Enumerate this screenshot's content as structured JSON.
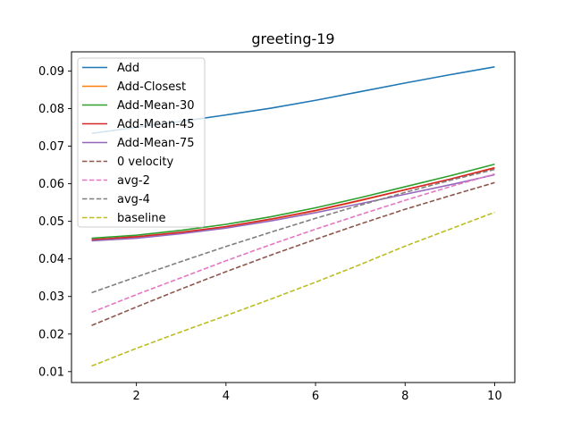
{
  "chart_data": {
    "type": "line",
    "title": "greeting-19",
    "xlabel": "",
    "ylabel": "",
    "xlim": [
      0.55,
      10.45
    ],
    "ylim": [
      0.0071,
      0.0951
    ],
    "xticks": [
      2,
      4,
      6,
      8,
      10
    ],
    "yticks": [
      0.01,
      0.02,
      0.03,
      0.04,
      0.05,
      0.06,
      0.07,
      0.08,
      0.09
    ],
    "ytick_labels": [
      "0.01",
      "0.02",
      "0.03",
      "0.04",
      "0.05",
      "0.06",
      "0.07",
      "0.08",
      "0.09"
    ],
    "grid": false,
    "legend_position": "upper-left",
    "x": [
      1,
      2,
      3,
      4,
      5,
      6,
      7,
      8,
      9,
      10
    ],
    "series": [
      {
        "name": "Add",
        "color": "#1f77b4",
        "dash": "solid",
        "values": [
          0.0734,
          0.075,
          0.0766,
          0.0783,
          0.0801,
          0.0822,
          0.0845,
          0.0868,
          0.089,
          0.0911
        ]
      },
      {
        "name": "Add-Closest",
        "color": "#ff7f0e",
        "dash": "solid",
        "values": [
          0.045,
          0.0458,
          0.047,
          0.0485,
          0.0505,
          0.0528,
          0.0555,
          0.0584,
          0.0612,
          0.0643
        ]
      },
      {
        "name": "Add-Mean-30",
        "color": "#2ca02c",
        "dash": "solid",
        "values": [
          0.0455,
          0.0463,
          0.0476,
          0.0492,
          0.0512,
          0.0536,
          0.0563,
          0.0592,
          0.0621,
          0.0652
        ]
      },
      {
        "name": "Add-Mean-45",
        "color": "#d62728",
        "dash": "solid",
        "values": [
          0.0451,
          0.0459,
          0.0471,
          0.0486,
          0.0506,
          0.0529,
          0.0556,
          0.0584,
          0.0612,
          0.0642
        ]
      },
      {
        "name": "Add-Mean-75",
        "color": "#9467bd",
        "dash": "solid",
        "values": [
          0.0448,
          0.0455,
          0.0467,
          0.0482,
          0.0501,
          0.0523,
          0.0547,
          0.0572,
          0.0597,
          0.0624
        ]
      },
      {
        "name": "0 velocity",
        "color": "#8c564b",
        "dash": "dashed",
        "values": [
          0.0223,
          0.0272,
          0.032,
          0.0366,
          0.041,
          0.0452,
          0.0493,
          0.0532,
          0.0568,
          0.0603
        ]
      },
      {
        "name": "avg-2",
        "color": "#e377c2",
        "dash": "dashed",
        "values": [
          0.0258,
          0.0305,
          0.035,
          0.0395,
          0.0438,
          0.0479,
          0.0518,
          0.0556,
          0.0592,
          0.0626
        ]
      },
      {
        "name": "avg-4",
        "color": "#7f7f7f",
        "dash": "dashed",
        "values": [
          0.031,
          0.0352,
          0.0393,
          0.0433,
          0.0471,
          0.0508,
          0.0543,
          0.0577,
          0.0609,
          0.0638
        ]
      },
      {
        "name": "baseline",
        "color": "#bcbd22",
        "dash": "dashed",
        "values": [
          0.0115,
          0.0162,
          0.0206,
          0.0249,
          0.0293,
          0.0338,
          0.0385,
          0.0434,
          0.0479,
          0.0524
        ]
      }
    ]
  }
}
